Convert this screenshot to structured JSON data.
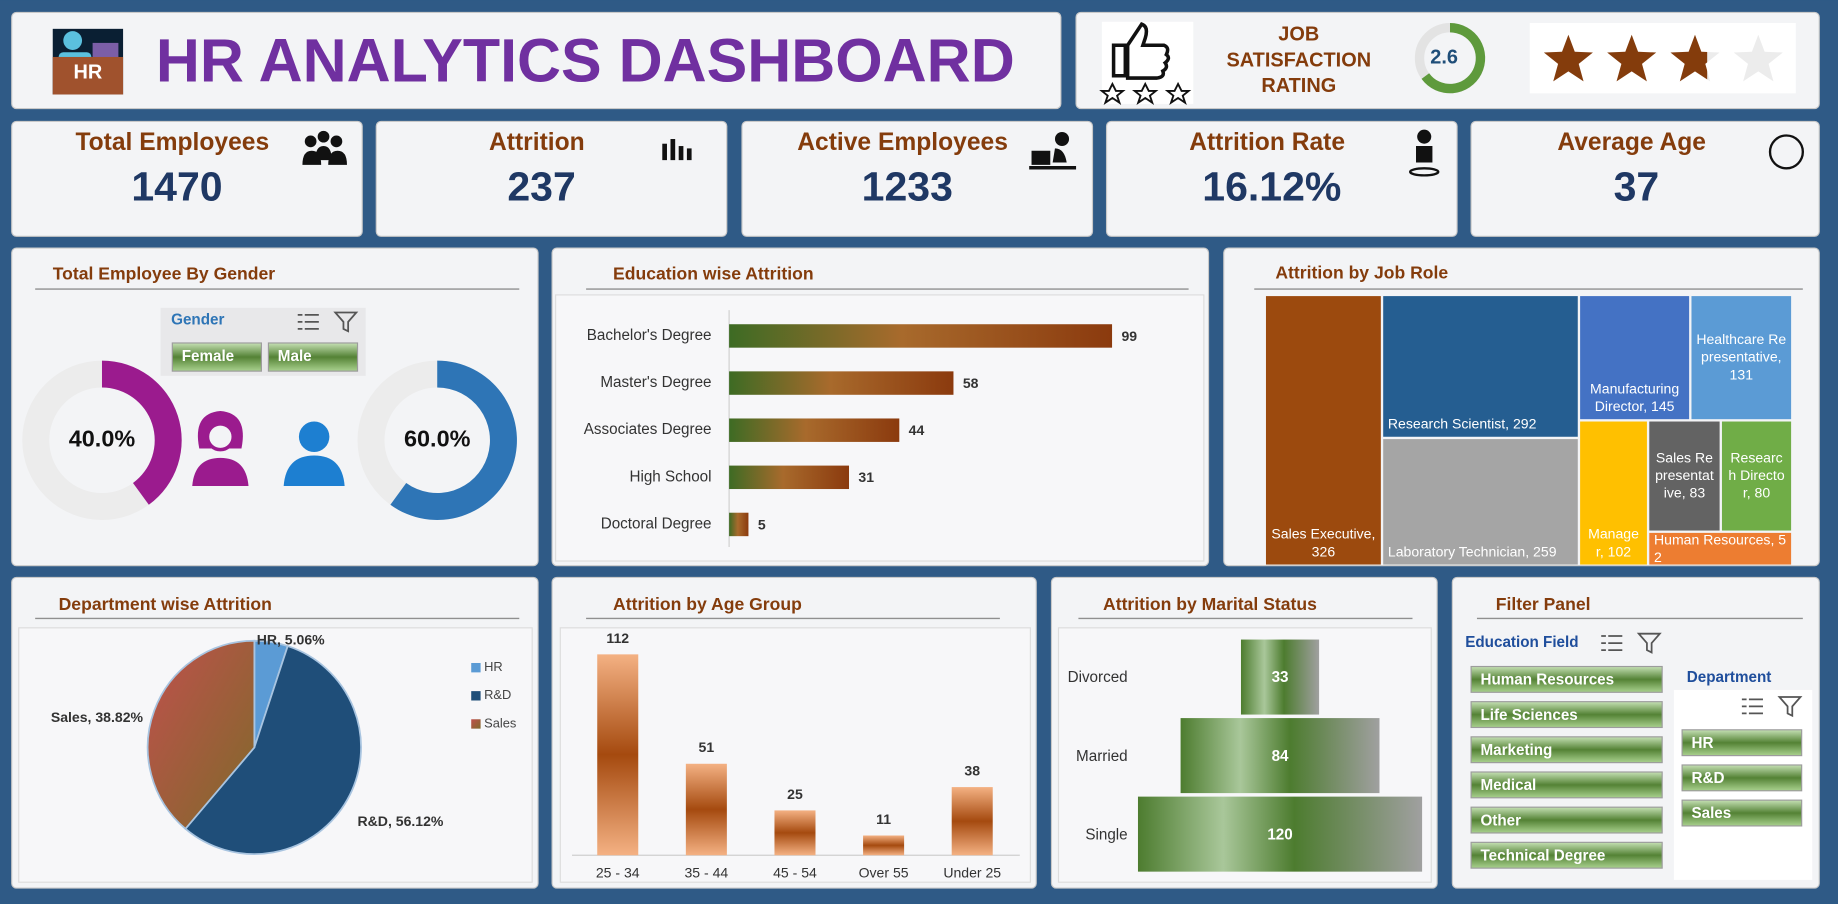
{
  "header": {
    "title": "HR ANALYTICS DASHBOARD",
    "icon_label": "HR"
  },
  "job_satisfaction": {
    "title": "JOB SATISFACTION RATING",
    "value": 2.6,
    "lim": [
      0,
      4
    ]
  },
  "kpis": [
    {
      "title": "Total Employees",
      "value": 1470
    },
    {
      "title": "Attrition",
      "value": 237
    },
    {
      "title": "Active Employees",
      "value": 1233
    },
    {
      "title": "Attrition Rate",
      "value": 16.12,
      "value_label": "16.12%"
    },
    {
      "title": "Average Age",
      "value": 37
    }
  ],
  "chart_data": [
    {
      "type": "donut",
      "title": "Total Employee By Gender",
      "slicer_title": "Gender",
      "categories": [
        "Female",
        "Male"
      ],
      "values": [
        40.0,
        60.0
      ],
      "value_labels": [
        "40.0%",
        "60.0%"
      ],
      "colors": [
        "#9b1b8e",
        "#2e75b6"
      ]
    },
    {
      "type": "hbar",
      "title": "Education wise Attrition",
      "categories": [
        "Bachelor's Degree",
        "Master's Degree",
        "Associates Degree",
        "High School",
        "Doctoral Degree"
      ],
      "values": [
        99,
        58,
        44,
        31,
        5
      ]
    },
    {
      "type": "treemap",
      "title": "Attrition by Job Role",
      "values": [
        326,
        292,
        259,
        145,
        131,
        102,
        83,
        80,
        52
      ],
      "value_labels": [
        "Sales Executive, 326",
        "Research Scientist, 292",
        "Laboratory Technician, 259",
        "Manufacturing Director, 145",
        "Healthcare Representative, 131",
        "Manager, 102",
        "Sales Representative, 83",
        "Research Director, 80",
        "Human Resources, 52"
      ],
      "colors": [
        "#9c4a0e",
        "#255e91",
        "#a5a5a5",
        "#4472c4",
        "#5b9bd5",
        "#ffc000",
        "#636363",
        "#70ad47",
        "#ed7d31"
      ]
    },
    {
      "type": "pie",
      "title": "Department wise Attrition",
      "categories": [
        "HR",
        "R&D",
        "Sales"
      ],
      "values": [
        5.06,
        56.12,
        38.82
      ],
      "value_labels": [
        "HR, 5.06%",
        "R&D, 56.12%",
        "Sales, 38.82%"
      ],
      "colors": [
        "#5b9bd5",
        "#1f4e79",
        "#b0513a"
      ]
    },
    {
      "type": "bar",
      "title": "Attrition by Age Group",
      "categories": [
        "25 - 34",
        "35 - 44",
        "45 - 54",
        "Over 55",
        "Under 25"
      ],
      "values": [
        112,
        51,
        25,
        11,
        38
      ]
    },
    {
      "type": "funnel",
      "title": "Attrition by Marital Status",
      "categories": [
        "Divorced",
        "Married",
        "Single"
      ],
      "values": [
        33,
        84,
        120
      ]
    }
  ],
  "filter_panel": {
    "title": "Filter Panel",
    "education_field": {
      "title": "Education Field",
      "items": [
        "Human Resources",
        "Life Sciences",
        "Marketing",
        "Medical",
        "Other",
        "Technical Degree"
      ]
    },
    "department": {
      "title": "Department",
      "items": [
        "HR",
        "R&D",
        "Sales"
      ]
    }
  }
}
